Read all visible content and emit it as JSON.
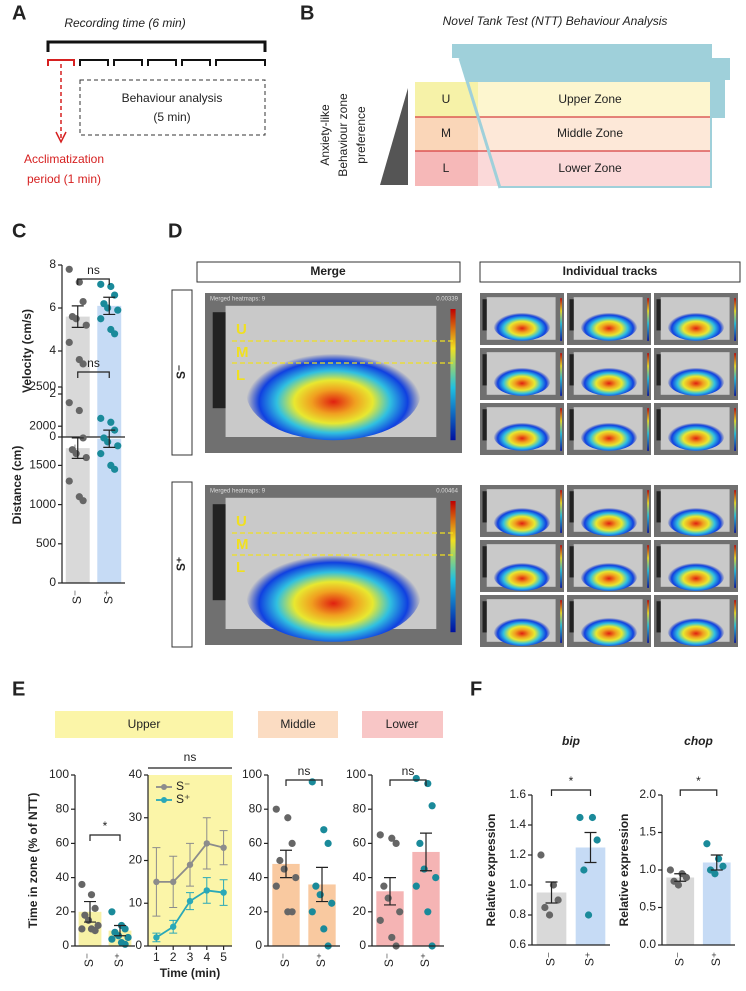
{
  "panel_labels": [
    "A",
    "B",
    "C",
    "D",
    "E",
    "F"
  ],
  "panel_a": {
    "title": "Recording time (6 min)",
    "box": [
      "Behaviour analysis",
      "(5 min)"
    ],
    "acclimatization": [
      "Acclimatization",
      "period (1 min)"
    ]
  },
  "panel_b": {
    "title": "Novel Tank Test (NTT) Behaviour Analysis",
    "axis_label": [
      "Anxiety-like",
      "Behaviour zone",
      "preference"
    ],
    "zones": [
      {
        "key": "U",
        "label": "Upper Zone"
      },
      {
        "key": "M",
        "label": "Middle Zone"
      },
      {
        "key": "L",
        "label": "Lower Zone"
      }
    ]
  },
  "panel_d": {
    "headers": [
      "Merge",
      "Individual tracks"
    ],
    "rows": [
      "S⁻",
      "S⁺"
    ],
    "zone_letters": [
      "U",
      "M",
      "L"
    ],
    "heatmap_titles": [
      "Merged heatmaps: 9",
      "Merged heatmaps: 9"
    ],
    "heatmap_max": [
      "0.00339",
      "0.00464"
    ]
  },
  "panel_e": {
    "zones": [
      "Upper",
      "Middle",
      "Lower"
    ]
  },
  "chart_data": [
    {
      "type": "bar",
      "ylabel": "Velocity (cm/s)",
      "categories": [
        "S⁻",
        "S⁺"
      ],
      "values": [
        5.6,
        6.1
      ],
      "errors": [
        0.5,
        0.4
      ],
      "points": [
        [
          7.8,
          7.2,
          6.3,
          5.6,
          5.5,
          5.2,
          4.4,
          3.6,
          3.4
        ],
        [
          7.1,
          7.0,
          6.6,
          6.2,
          6.0,
          5.9,
          5.5,
          5.0,
          4.8
        ]
      ],
      "colors": [
        "#d9d9d9",
        "#c6dbf5"
      ],
      "point_colors": [
        "#666666",
        "#1a8a9a"
      ],
      "ylim": [
        0,
        8
      ],
      "yticks": [
        0,
        2,
        4,
        6,
        8
      ],
      "annotation": "ns"
    },
    {
      "type": "bar",
      "ylabel": "Distance (cm)",
      "categories": [
        "S⁻",
        "S⁺"
      ],
      "values": [
        1720,
        1840
      ],
      "errors": [
        130,
        110
      ],
      "points": [
        [
          2300,
          2200,
          1850,
          1700,
          1650,
          1600,
          1300,
          1100,
          1050
        ],
        [
          2100,
          2050,
          1950,
          1850,
          1800,
          1750,
          1650,
          1500,
          1450
        ]
      ],
      "colors": [
        "#d9d9d9",
        "#c6dbf5"
      ],
      "point_colors": [
        "#666666",
        "#1a8a9a"
      ],
      "ylim": [
        0,
        2500
      ],
      "yticks": [
        0,
        500,
        1000,
        1500,
        2000,
        2500
      ],
      "annotation": "ns"
    },
    {
      "type": "bar",
      "ylabel": "Time in zone (% of NTT)",
      "categories": [
        "S⁻",
        "S⁺"
      ],
      "values": [
        20,
        9
      ],
      "errors": [
        6,
        3
      ],
      "points": [
        [
          36,
          30,
          22,
          18,
          15,
          12,
          10,
          10,
          9
        ],
        [
          20,
          12,
          10,
          8,
          6,
          5,
          4,
          2,
          1
        ]
      ],
      "colors": [
        "#f7f1a6",
        "#f7f1a6"
      ],
      "point_colors": [
        "#666666",
        "#1a8a9a"
      ],
      "ylim": [
        0,
        100
      ],
      "yticks": [
        0,
        20,
        40,
        60,
        80,
        100
      ],
      "annotation": "*"
    },
    {
      "type": "line",
      "xlabel": "Time (min)",
      "x": [
        1,
        2,
        3,
        4,
        5
      ],
      "xlim": [
        0.5,
        5.5
      ],
      "xticks": [
        1,
        2,
        3,
        4,
        5
      ],
      "ylim": [
        0,
        40
      ],
      "yticks": [
        0,
        10,
        20,
        30,
        40
      ],
      "background": "#fbf5a8",
      "legend": "upper left",
      "annotation": "ns",
      "series": [
        {
          "name": "S⁻",
          "color": "#8c8c8c",
          "values": [
            15,
            15,
            19,
            24,
            23
          ],
          "errors": [
            8,
            6,
            5,
            6,
            4
          ]
        },
        {
          "name": "S⁺",
          "color": "#2aa8b8",
          "values": [
            2,
            4.5,
            10.5,
            13,
            12.5
          ],
          "errors": [
            1,
            1.5,
            2,
            3,
            3
          ]
        }
      ]
    },
    {
      "type": "bar",
      "categories": [
        "S⁻",
        "S⁺"
      ],
      "values": [
        48,
        36
      ],
      "errors": [
        8,
        10
      ],
      "points": [
        [
          80,
          75,
          60,
          50,
          45,
          40,
          35,
          20,
          20
        ],
        [
          96,
          68,
          60,
          35,
          30,
          25,
          20,
          10,
          0
        ]
      ],
      "colors": [
        "#f9c9a0",
        "#f9c9a0"
      ],
      "point_colors": [
        "#666666",
        "#1a8a9a"
      ],
      "ylim": [
        0,
        100
      ],
      "yticks": [
        0,
        20,
        40,
        60,
        80,
        100
      ],
      "annotation": "ns"
    },
    {
      "type": "bar",
      "categories": [
        "S⁻",
        "S⁺"
      ],
      "values": [
        32,
        55
      ],
      "errors": [
        8,
        11
      ],
      "points": [
        [
          65,
          63,
          60,
          35,
          28,
          20,
          15,
          5,
          0
        ],
        [
          98,
          95,
          82,
          60,
          45,
          40,
          35,
          20,
          0
        ]
      ],
      "colors": [
        "#f5b4b4",
        "#f5b4b4"
      ],
      "point_colors": [
        "#666666",
        "#1a8a9a"
      ],
      "ylim": [
        0,
        100
      ],
      "yticks": [
        0,
        20,
        40,
        60,
        80,
        100
      ],
      "annotation": "ns"
    },
    {
      "type": "bar",
      "title": "bip",
      "ylabel": "Relative expression",
      "categories": [
        "S⁻",
        "S⁺"
      ],
      "values": [
        0.95,
        1.25
      ],
      "errors": [
        0.07,
        0.1
      ],
      "points": [
        [
          1.2,
          1.0,
          0.9,
          0.85,
          0.8
        ],
        [
          1.45,
          1.45,
          1.3,
          1.1,
          0.8
        ]
      ],
      "colors": [
        "#d9d9d9",
        "#c6dbf5"
      ],
      "point_colors": [
        "#666666",
        "#1a8a9a"
      ],
      "ylim": [
        0.6,
        1.6
      ],
      "yticks": [
        0.6,
        0.8,
        {
          "value": 1,
          "label": "1.0"
        },
        1.2,
        1.4,
        1.6
      ],
      "annotation": "*"
    },
    {
      "type": "bar",
      "title": "chop",
      "ylabel": "Relative expression",
      "categories": [
        "S⁻",
        "S⁺"
      ],
      "values": [
        0.9,
        1.1
      ],
      "errors": [
        0.05,
        0.1
      ],
      "points": [
        [
          1.0,
          0.95,
          0.9,
          0.85,
          0.8
        ],
        [
          1.35,
          1.15,
          1.05,
          1.0,
          0.95
        ]
      ],
      "colors": [
        "#d9d9d9",
        "#c6dbf5"
      ],
      "point_colors": [
        "#666666",
        "#1a8a9a"
      ],
      "ylim": [
        0,
        2
      ],
      "yticks": [
        {
          "value": 0,
          "label": "0.0"
        },
        0.5,
        {
          "value": 1,
          "label": "1.0"
        },
        1.5,
        {
          "value": 2,
          "label": "2.0"
        }
      ],
      "annotation": "*"
    }
  ]
}
